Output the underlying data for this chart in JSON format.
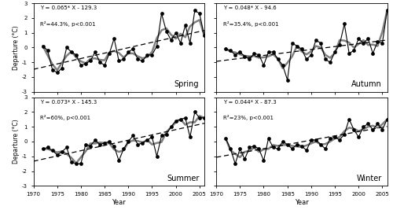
{
  "years": [
    1972,
    1973,
    1974,
    1975,
    1976,
    1977,
    1978,
    1979,
    1980,
    1981,
    1982,
    1983,
    1984,
    1985,
    1986,
    1987,
    1988,
    1989,
    1990,
    1991,
    1992,
    1993,
    1994,
    1995,
    1996,
    1997,
    1998,
    1999,
    2000,
    2001,
    2002,
    2003,
    2004,
    2005,
    2006
  ],
  "spring": [
    0.1,
    -0.2,
    -1.5,
    -1.7,
    -1.4,
    0.0,
    -0.3,
    -0.5,
    -1.2,
    -1.1,
    -0.9,
    -0.3,
    -1.0,
    -1.2,
    -0.4,
    0.6,
    -0.9,
    -0.8,
    -0.3,
    -0.1,
    -0.8,
    -0.9,
    -0.5,
    -0.5,
    0.1,
    2.3,
    1.1,
    0.5,
    1.0,
    0.3,
    1.5,
    0.3,
    2.5,
    2.3,
    0.8
  ],
  "autumn": [
    -0.1,
    -0.2,
    -0.5,
    -0.3,
    -0.6,
    -0.8,
    -0.4,
    -0.5,
    -1.2,
    -0.3,
    -0.3,
    -0.8,
    -1.2,
    -2.2,
    0.3,
    0.1,
    -0.1,
    -0.8,
    -0.5,
    0.5,
    0.3,
    -0.8,
    -1.0,
    -0.3,
    0.2,
    1.6,
    -0.4,
    -0.2,
    0.6,
    0.3,
    0.6,
    -0.4,
    0.4,
    0.3,
    2.5
  ],
  "summer": [
    -0.5,
    -0.4,
    -0.6,
    -0.9,
    -0.7,
    -0.4,
    -1.4,
    -1.5,
    -1.5,
    -0.2,
    -0.3,
    0.1,
    -0.2,
    -0.1,
    0.0,
    -0.3,
    -1.3,
    -0.5,
    0.0,
    0.4,
    -0.2,
    -0.1,
    0.1,
    0.3,
    -1.0,
    0.4,
    0.5,
    1.0,
    1.4,
    1.5,
    1.6,
    0.3,
    2.0,
    1.6,
    1.6
  ],
  "winter": [
    0.2,
    -0.5,
    -1.5,
    -0.5,
    -1.2,
    -0.4,
    -0.3,
    -0.5,
    -1.3,
    0.2,
    -0.4,
    -0.5,
    0.0,
    -0.2,
    -0.5,
    -0.2,
    -0.3,
    -0.6,
    0.1,
    0.1,
    -0.2,
    -0.5,
    0.2,
    0.3,
    0.1,
    0.5,
    1.5,
    0.8,
    0.3,
    1.0,
    1.2,
    0.8,
    1.2,
    0.8,
    1.5
  ],
  "spring_eq": "Y = 0.065* X - 129.3",
  "spring_r2": "R²=44.3%, p<0.001",
  "autumn_eq": "Y = 0.048* X - 94.6",
  "autumn_r2": "R²=35.4%, p<0.001",
  "summer_eq": "Y = 0.073* X - 145.3",
  "summer_r2": "R²=60%, p<0.001",
  "winter_eq": "Y = 0.044* X - 87.3",
  "winter_r2": "R²=23%, p<0.001",
  "ylim": [
    -3,
    3
  ],
  "xlim": [
    1970,
    2006
  ],
  "xticks": [
    1970,
    1975,
    1980,
    1985,
    1990,
    1995,
    2000,
    2005
  ],
  "yticks": [
    -3,
    -2,
    -1,
    0,
    1,
    2,
    3
  ],
  "xlabel": "Year",
  "ylabel": "Departure (°C)",
  "line_color": "black",
  "moving_color": "gray",
  "moving_lw": 1.8,
  "data_lw": 0.8,
  "marker": "o",
  "marker_size": 3,
  "marker_fc": "black",
  "regression_lw": 0.9,
  "dashes": [
    5,
    3
  ],
  "tick_fontsize": 5,
  "label_fontsize": 5.5,
  "eq_fontsize": 5,
  "season_fontsize": 7,
  "ylabel_fontsize": 5.5,
  "xlabel_fontsize": 6
}
